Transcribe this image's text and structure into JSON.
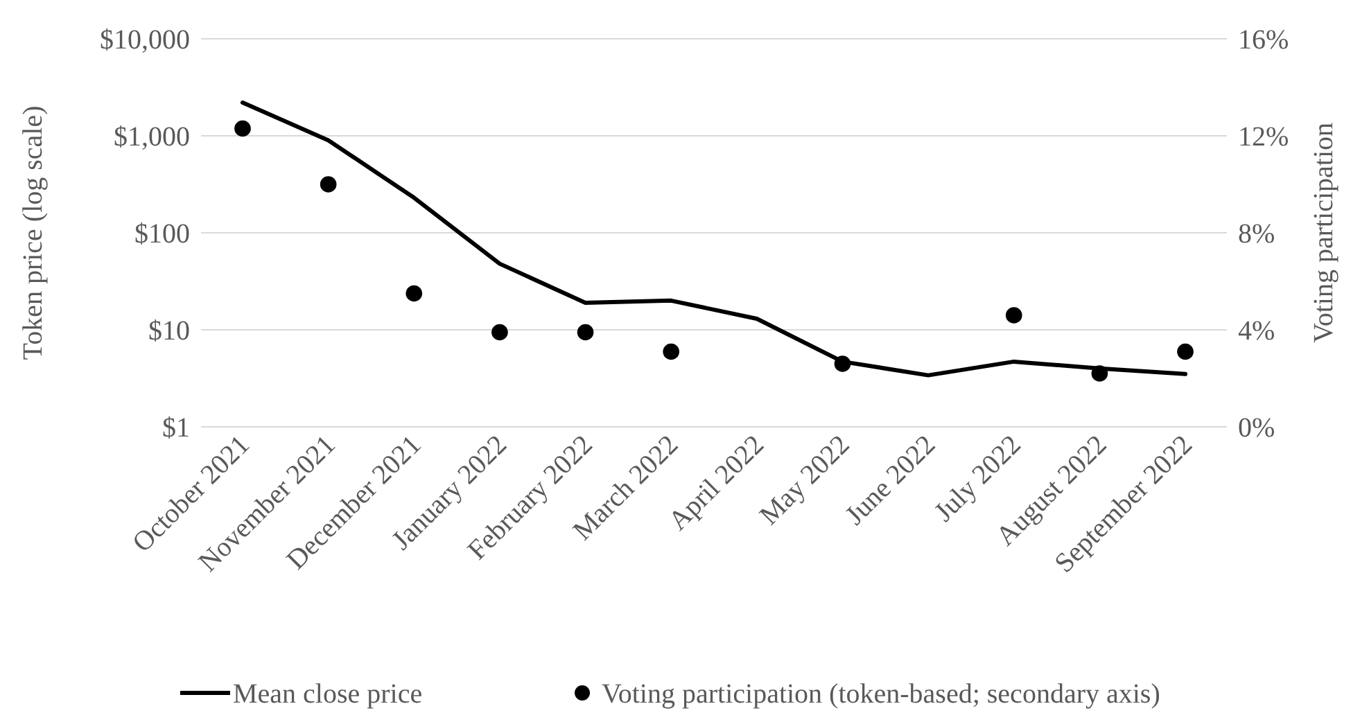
{
  "chart_data": {
    "type": "line",
    "ylabel": "Token price (log scale)",
    "y2label": "Voting participation",
    "categories": [
      "October 2021",
      "November 2021",
      "December 2021",
      "January 2022",
      "February 2022",
      "March 2022",
      "April 2022",
      "May 2022",
      "June 2022",
      "July 2022",
      "August 2022",
      "September 2022"
    ],
    "series": [
      {
        "name": "Mean close price",
        "type": "line",
        "color": "#000000",
        "values": [
          2200,
          900,
          230,
          48,
          19,
          20,
          13,
          4.7,
          3.4,
          4.7,
          4,
          3.5
        ]
      },
      {
        "name": "Voting participation (token-based; secondary axis)",
        "type": "scatter",
        "axis": "y2",
        "color": "#000000",
        "marker": "circle",
        "values": [
          12.3,
          10,
          5.5,
          3.9,
          3.9,
          3.1,
          null,
          2.6,
          null,
          4.6,
          2.2,
          3.1
        ]
      }
    ],
    "log": "y",
    "ylim": [
      1,
      10000
    ],
    "yticks": [
      {
        "value": 1,
        "label": "$1"
      },
      {
        "value": 10,
        "label": "$10"
      },
      {
        "value": 100,
        "label": "$100"
      },
      {
        "value": 1000,
        "label": "$1,000"
      },
      {
        "value": 10000,
        "label": "$10,000"
      }
    ],
    "y2lim": [
      0,
      16
    ],
    "y2ticks": [
      {
        "value": 0,
        "label": "0%"
      },
      {
        "value": 4,
        "label": "4%"
      },
      {
        "value": 8,
        "label": "8%"
      },
      {
        "value": 12,
        "label": "12%"
      },
      {
        "value": 16,
        "label": "16%"
      }
    ],
    "grid": "y",
    "legend": "bottom"
  }
}
